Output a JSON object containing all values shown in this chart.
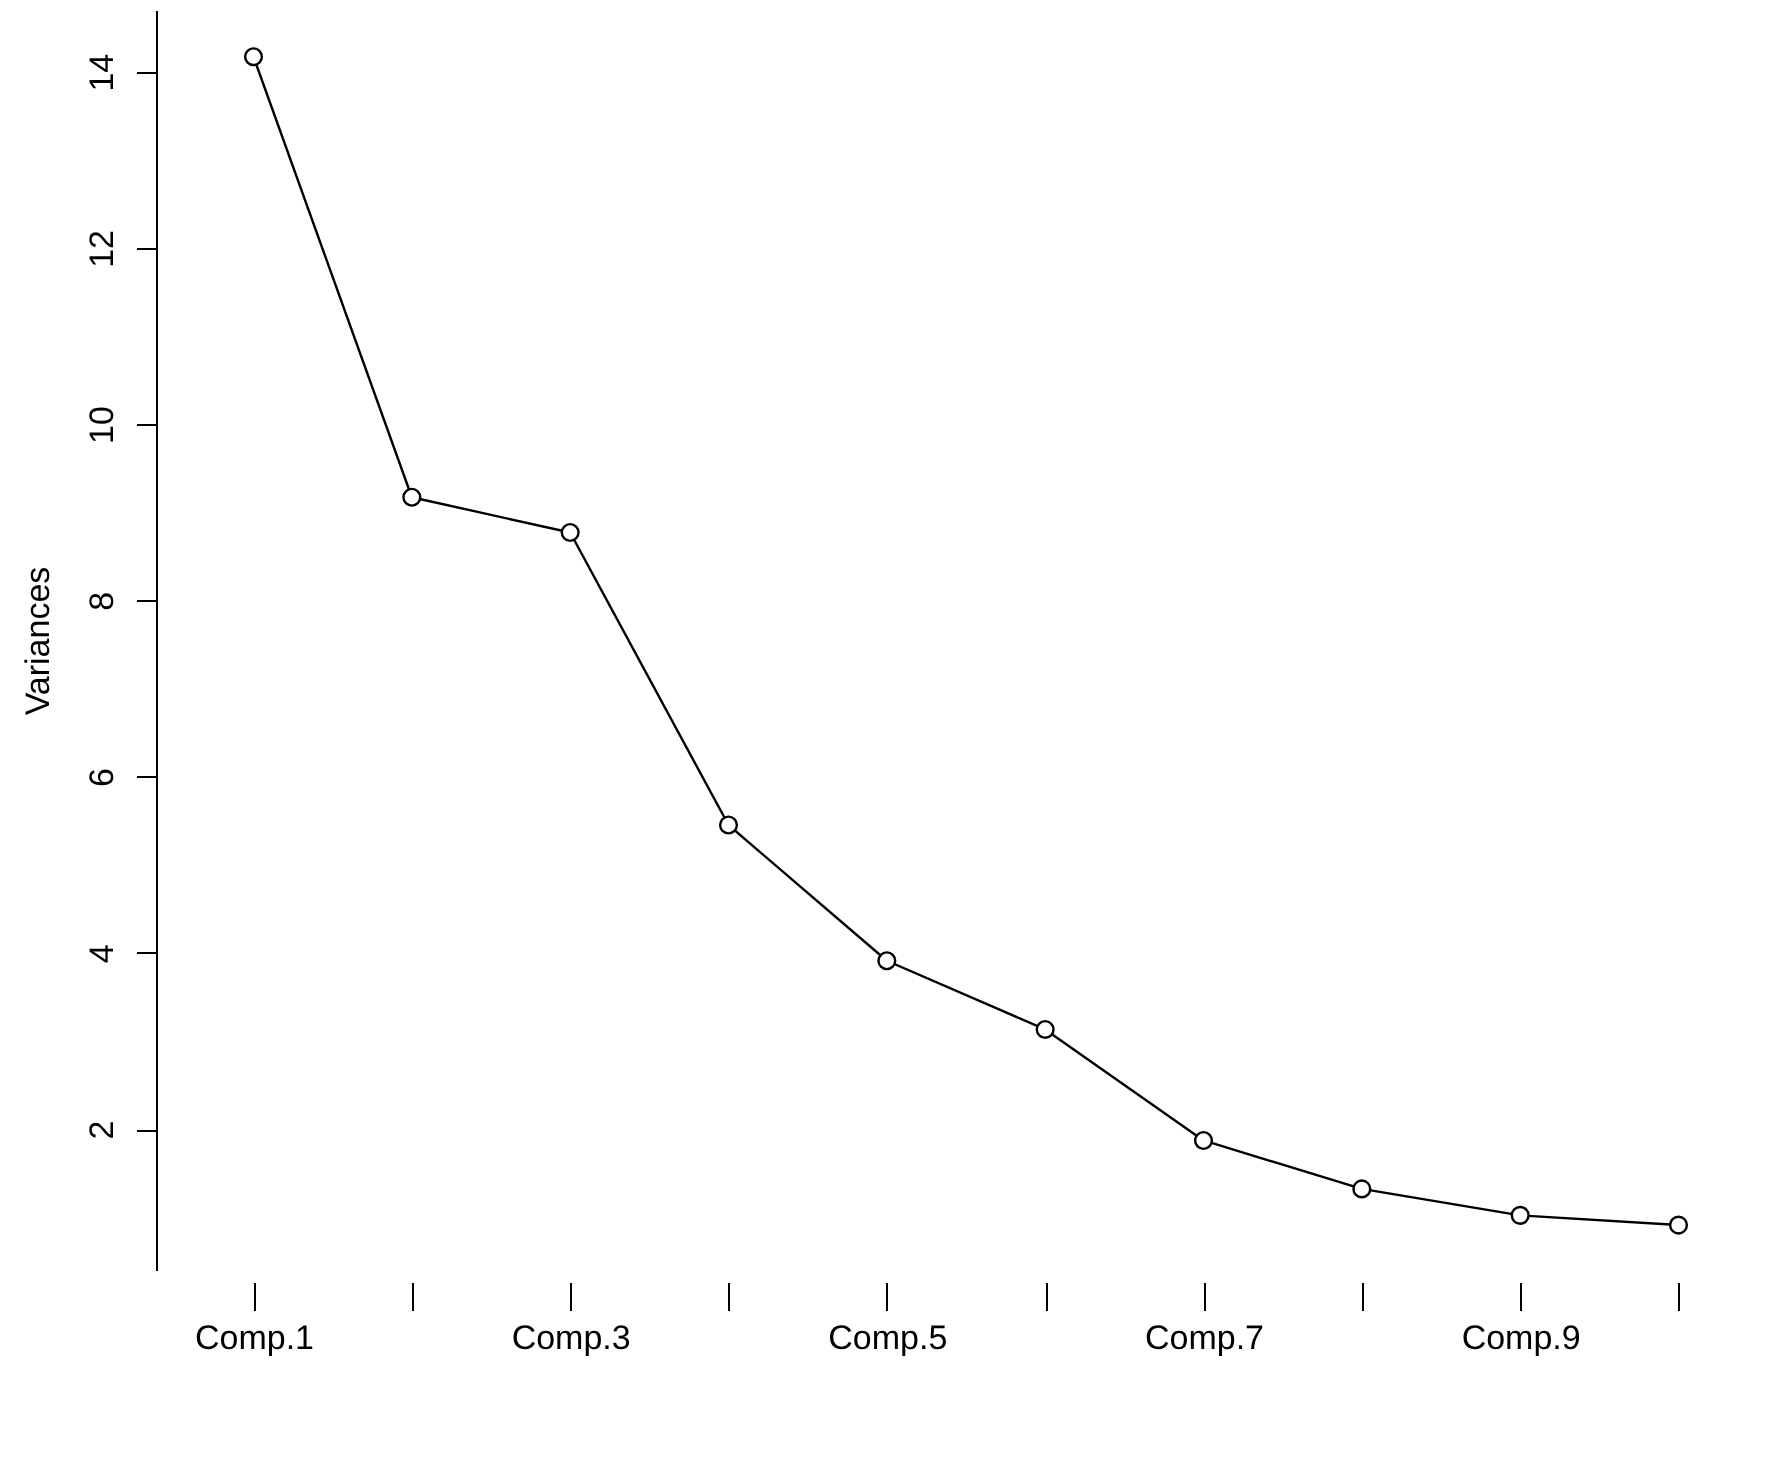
{
  "chart_data": {
    "type": "line",
    "ylabel": "Variances",
    "categories": [
      "Comp.1",
      null,
      "Comp.3",
      null,
      "Comp.5",
      null,
      "Comp.7",
      null,
      "Comp.9",
      null
    ],
    "values": [
      14.17,
      9.17,
      8.77,
      5.45,
      3.91,
      3.13,
      1.87,
      1.32,
      1.02,
      0.91
    ],
    "color": "#000000",
    "marker": "circle",
    "line_style": "solid",
    "ylim": [
      0.4,
      14.7
    ],
    "yticks": [
      2,
      4,
      6,
      8,
      10,
      12,
      14
    ],
    "grid": false
  }
}
